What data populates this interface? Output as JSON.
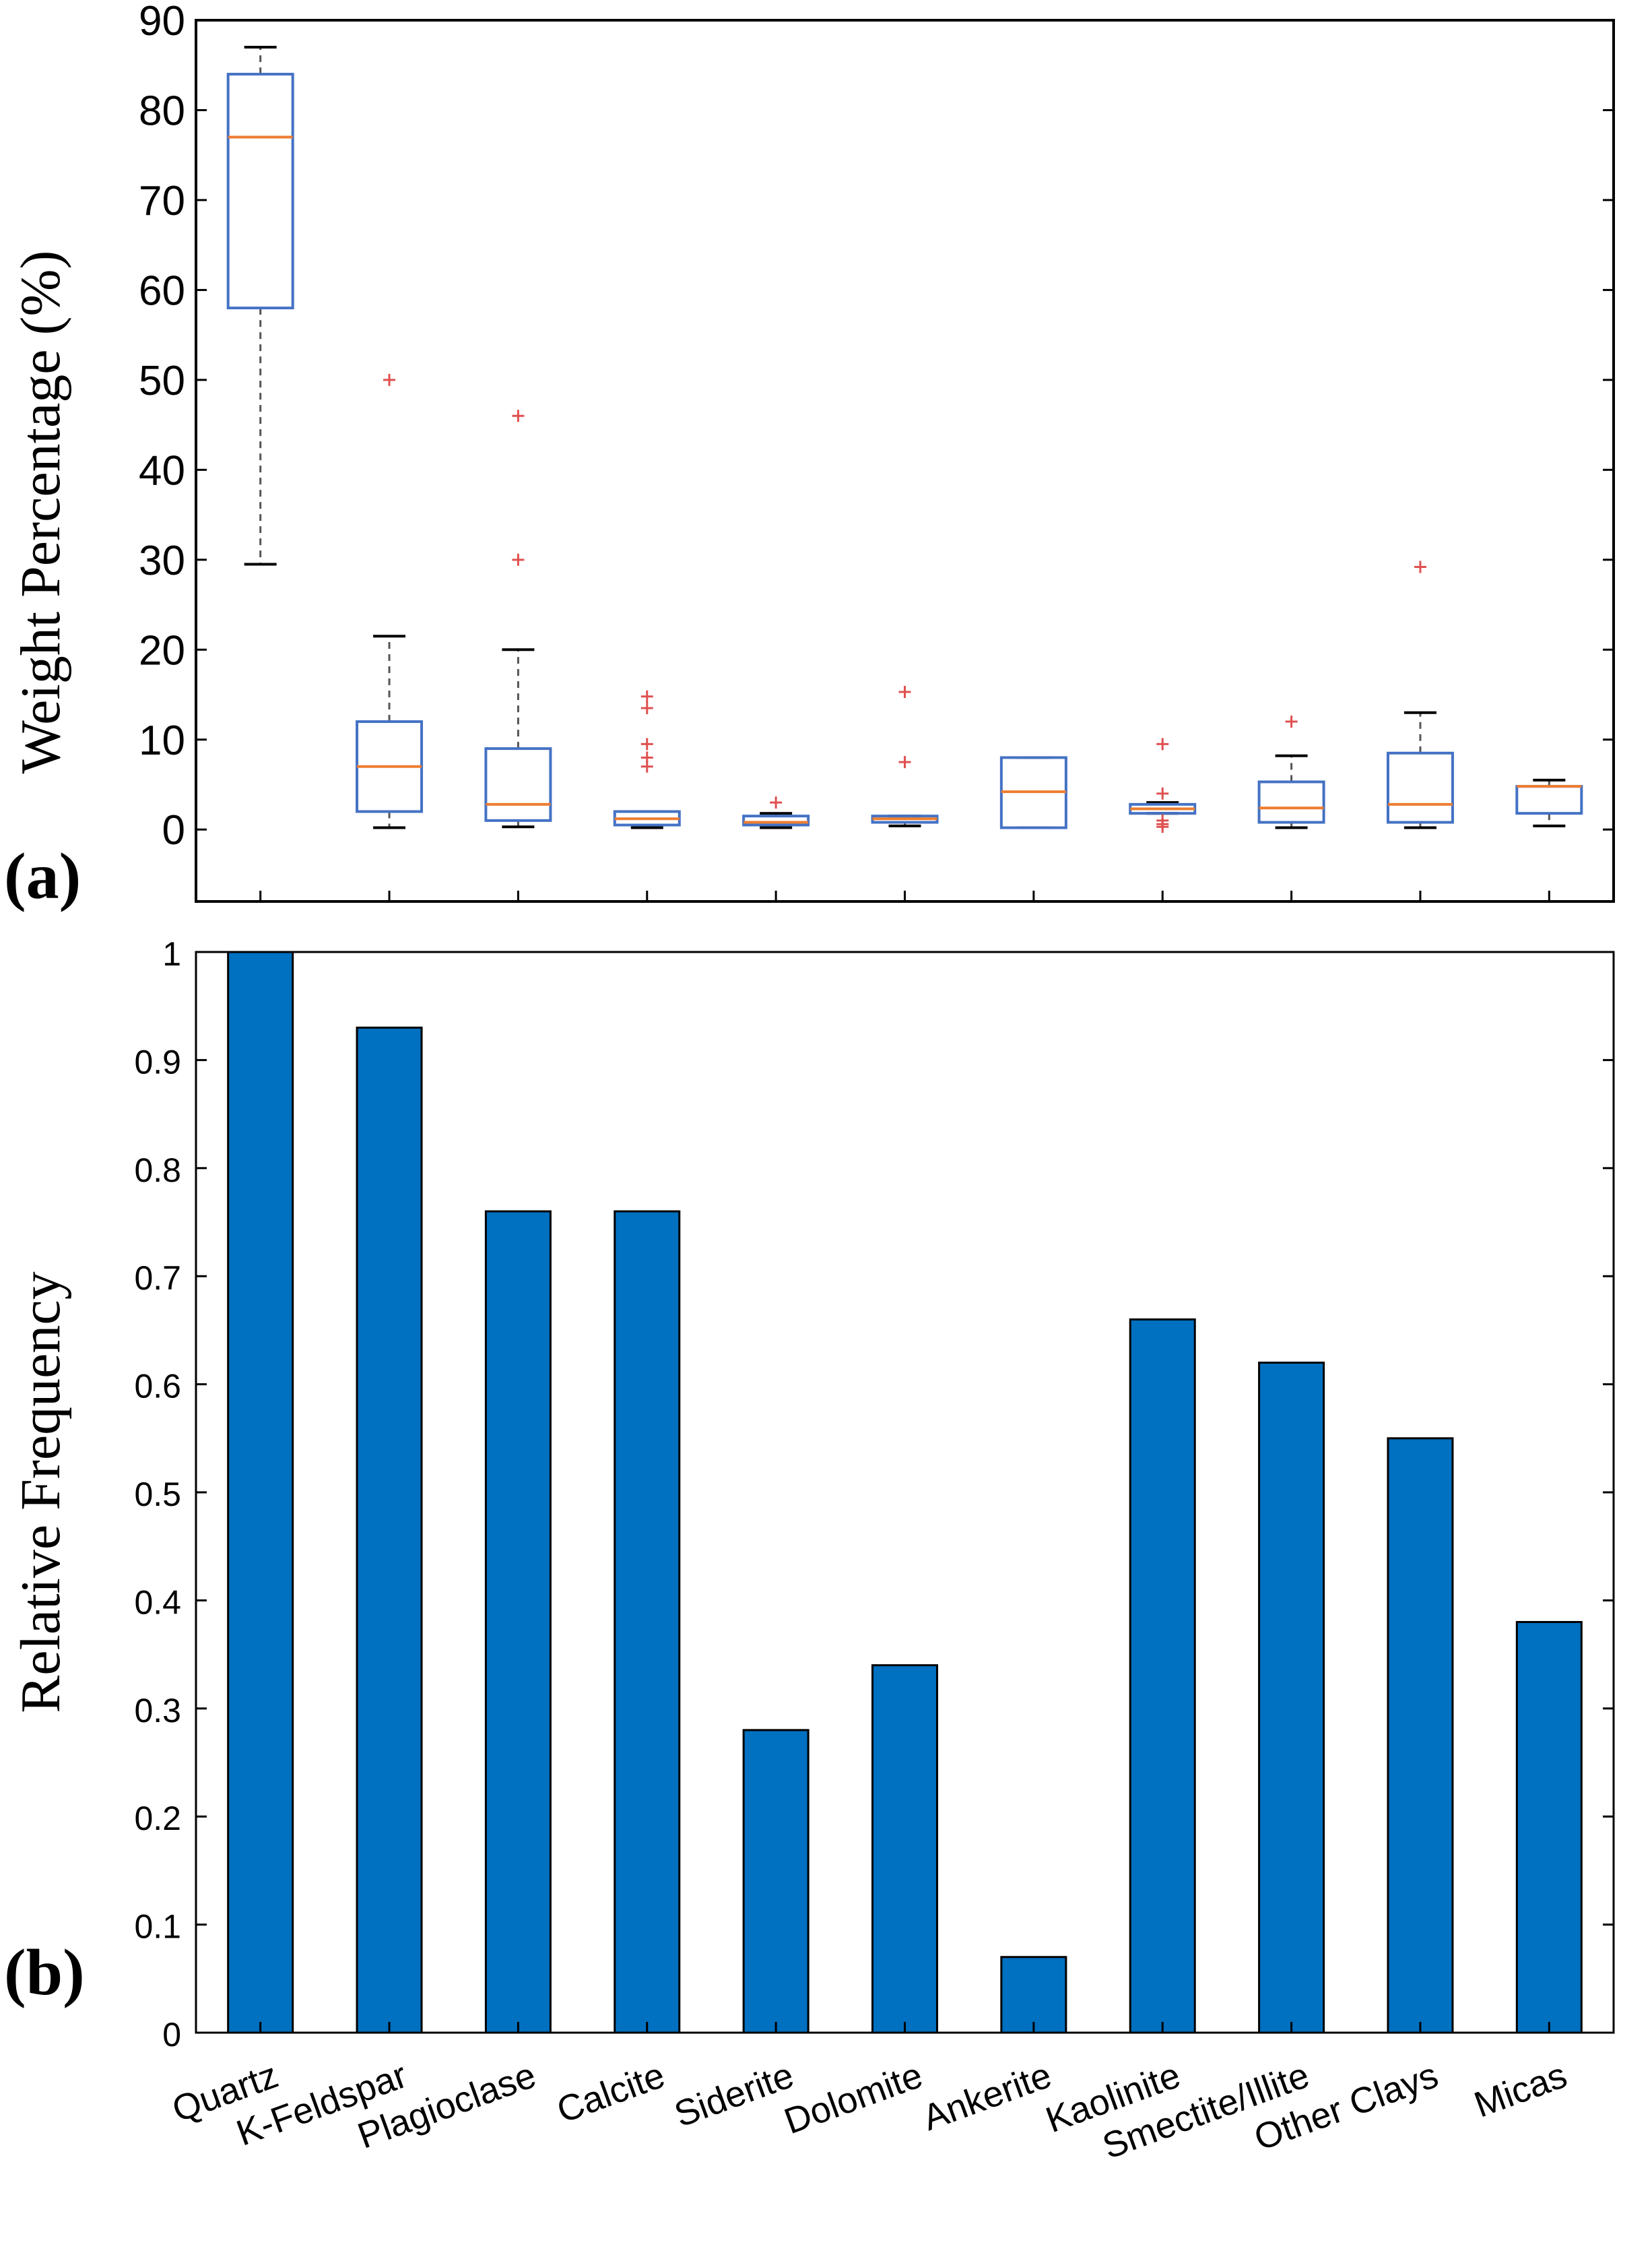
{
  "panels": {
    "a": {
      "label": "(a)"
    },
    "b": {
      "label": "(b)"
    }
  },
  "colors": {
    "box_edge": "#4472C4",
    "median": "#ED7D31",
    "outlier": "#E05050",
    "whisker": "#333333",
    "bar_fill": "#0070C0",
    "axis": "#000000"
  },
  "chart_data": [
    {
      "type": "box",
      "title": "",
      "xlabel": "",
      "ylabel": "Weight Percentage (%)",
      "ylim": [
        -8,
        90
      ],
      "yticks": [
        0,
        10,
        20,
        30,
        40,
        50,
        60,
        70,
        80,
        90
      ],
      "categories": [
        "Quartz",
        "K-Feldspar",
        "Plagioclase",
        "Calcite",
        "Siderite",
        "Dolomite",
        "Ankerite",
        "Kaolinite",
        "Smectite/Illite",
        "Other Clays",
        "Micas"
      ],
      "boxes": [
        {
          "name": "Quartz",
          "whisker_low": 29.5,
          "q1": 58,
          "median": 77,
          "q3": 84,
          "whisker_high": 87,
          "outliers": []
        },
        {
          "name": "K-Feldspar",
          "whisker_low": 0.2,
          "q1": 2,
          "median": 7,
          "q3": 12,
          "whisker_high": 21.5,
          "outliers": [
            50
          ]
        },
        {
          "name": "Plagioclase",
          "whisker_low": 0.3,
          "q1": 1,
          "median": 2.8,
          "q3": 9,
          "whisker_high": 20,
          "outliers": [
            30,
            46
          ]
        },
        {
          "name": "Calcite",
          "whisker_low": 0.2,
          "q1": 0.5,
          "median": 1.2,
          "q3": 2,
          "whisker_high": 2,
          "outliers": [
            7,
            8,
            9.5,
            13.5,
            14.8
          ]
        },
        {
          "name": "Siderite",
          "whisker_low": 0.2,
          "q1": 0.5,
          "median": 0.8,
          "q3": 1.5,
          "whisker_high": 1.8,
          "outliers": [
            3
          ]
        },
        {
          "name": "Dolomite",
          "whisker_low": 0.4,
          "q1": 0.8,
          "median": 1.2,
          "q3": 1.5,
          "whisker_high": 1.5,
          "outliers": [
            7.5,
            15.3
          ]
        },
        {
          "name": "Ankerite",
          "whisker_low": 0.2,
          "q1": 0.2,
          "median": 4.2,
          "q3": 8,
          "whisker_high": 8,
          "outliers": []
        },
        {
          "name": "Kaolinite",
          "whisker_low": 1.8,
          "q1": 1.8,
          "median": 2.3,
          "q3": 2.8,
          "whisker_high": 3,
          "outliers": [
            0.3,
            0.6,
            1,
            4,
            9.5
          ]
        },
        {
          "name": "Smectite/Illite",
          "whisker_low": 0.2,
          "q1": 0.8,
          "median": 2.4,
          "q3": 5.3,
          "whisker_high": 8.2,
          "outliers": [
            12
          ]
        },
        {
          "name": "Other Clays",
          "whisker_low": 0.2,
          "q1": 0.8,
          "median": 2.8,
          "q3": 8.5,
          "whisker_high": 13,
          "outliers": [
            29.2
          ]
        },
        {
          "name": "Micas",
          "whisker_low": 0.4,
          "q1": 1.8,
          "median": 4.8,
          "q3": 4.8,
          "whisker_high": 5.5,
          "outliers": []
        }
      ]
    },
    {
      "type": "bar",
      "title": "",
      "xlabel": "",
      "ylabel": "Relative Frequency",
      "ylim": [
        0,
        1
      ],
      "yticks": [
        0,
        0.1,
        0.2,
        0.3,
        0.4,
        0.5,
        0.6,
        0.7,
        0.8,
        0.9,
        1
      ],
      "ytick_labels": [
        "0",
        "0.1",
        "0.2",
        "0.3",
        "0.4",
        "0.5",
        "0.6",
        "0.7",
        "0.8",
        "0.9",
        "1"
      ],
      "categories": [
        "Quartz",
        "K-Feldspar",
        "Plagioclase",
        "Calcite",
        "Siderite",
        "Dolomite",
        "Ankerite",
        "Kaolinite",
        "Smectite/Illite",
        "Other Clays",
        "Micas"
      ],
      "values": [
        1.0,
        0.93,
        0.76,
        0.76,
        0.28,
        0.34,
        0.07,
        0.66,
        0.62,
        0.55,
        0.38
      ]
    }
  ]
}
